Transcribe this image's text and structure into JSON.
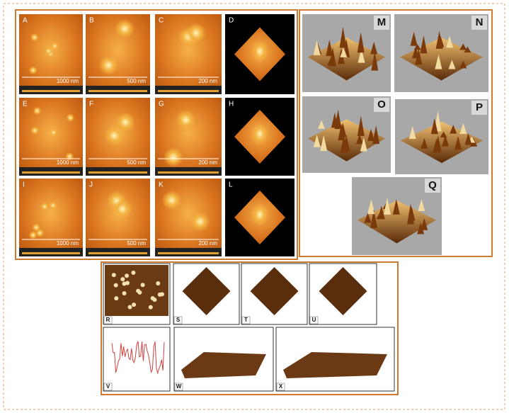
{
  "panels": [
    {
      "label": "A",
      "scale": "1000 nm"
    },
    {
      "label": "B",
      "scale": "500 nm"
    },
    {
      "label": "C",
      "scale": "200 nm"
    },
    {
      "label": "D"
    },
    {
      "label": "E",
      "scale": "1000 nm"
    },
    {
      "label": "F",
      "scale": "500 nm"
    },
    {
      "label": "G",
      "scale": "200 nm"
    },
    {
      "label": "H"
    },
    {
      "label": "I",
      "scale": "1000 nm"
    },
    {
      "label": "J",
      "scale": "500 nm"
    },
    {
      "label": "K",
      "scale": "200 nm"
    },
    {
      "label": "L"
    },
    {
      "label": "M"
    },
    {
      "label": "N"
    },
    {
      "label": "O"
    },
    {
      "label": "P"
    },
    {
      "label": "Q"
    },
    {
      "label": "R"
    },
    {
      "label": "S"
    },
    {
      "label": "T"
    },
    {
      "label": "U"
    },
    {
      "label": "V"
    },
    {
      "label": "W"
    },
    {
      "label": "X"
    }
  ]
}
